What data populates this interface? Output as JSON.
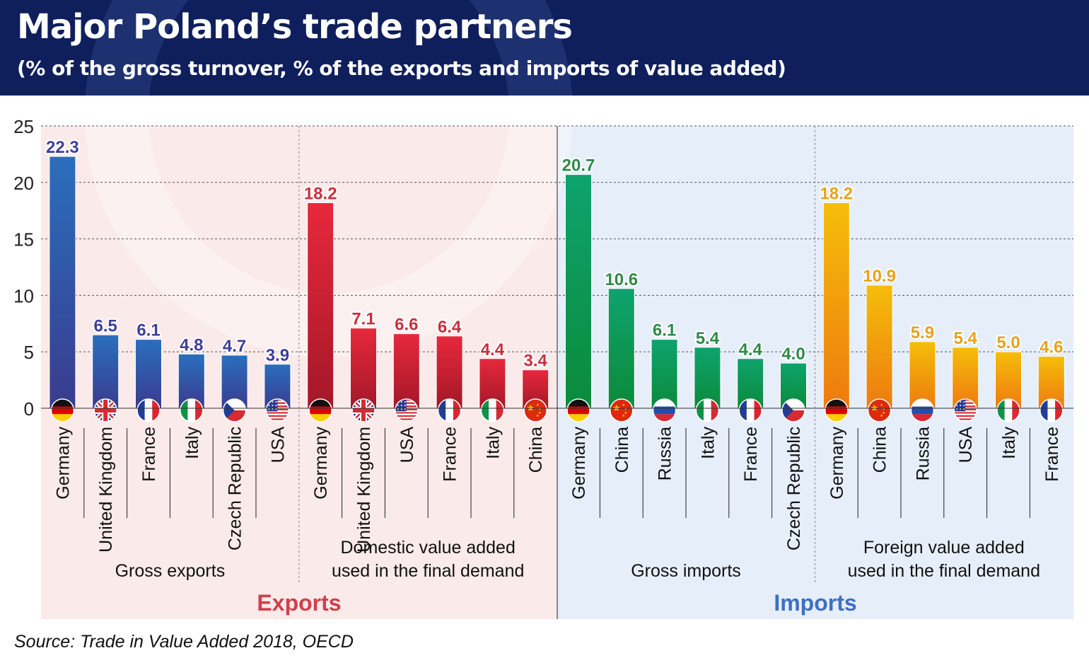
{
  "header": {
    "title": "Major Poland’s trade partners",
    "subtitle": "(% of the gross turnover, % of the exports and imports of value added)"
  },
  "source": "Source: Trade in Value Added 2018, OECD",
  "chart_data": {
    "type": "bar",
    "ylim": [
      0,
      25
    ],
    "yticks": [
      0,
      5,
      10,
      15,
      20,
      25
    ],
    "grid": true,
    "panels": [
      {
        "name": "Exports",
        "bg": "#fbeaea",
        "label_color": "#d13f4a",
        "groups": [
          {
            "label_lines": [
              "Gross exports"
            ],
            "color_top": "#2a6fbd",
            "color_bottom": "#3a3b8f",
            "label_color": "#3e3f98",
            "bars": [
              {
                "country": "Germany",
                "value": 22.3
              },
              {
                "country": "United Kingdom",
                "value": 6.5
              },
              {
                "country": "France",
                "value": 6.1
              },
              {
                "country": "Italy",
                "value": 4.8
              },
              {
                "country": "Czech Republic",
                "value": 4.7
              },
              {
                "country": "USA",
                "value": 3.9
              }
            ]
          },
          {
            "label_lines": [
              "Domestic value added",
              "used in the final demand"
            ],
            "color_top": "#e8283c",
            "color_bottom": "#a31828",
            "label_color": "#c8303d",
            "bars": [
              {
                "country": "Germany",
                "value": 18.2
              },
              {
                "country": "United Kingdom",
                "value": 7.1
              },
              {
                "country": "USA",
                "value": 6.6
              },
              {
                "country": "France",
                "value": 6.4
              },
              {
                "country": "Italy",
                "value": 4.4
              },
              {
                "country": "China",
                "value": 3.4
              }
            ]
          }
        ]
      },
      {
        "name": "Imports",
        "bg": "#e6eefa",
        "label_color": "#3d6fc4",
        "groups": [
          {
            "label_lines": [
              "Gross imports"
            ],
            "color_top": "#0ea36e",
            "color_bottom": "#0c8a3a",
            "label_color": "#2e8a46",
            "bars": [
              {
                "country": "Germany",
                "value": 20.7
              },
              {
                "country": "China",
                "value": 10.6
              },
              {
                "country": "Russia",
                "value": 6.1
              },
              {
                "country": "Italy",
                "value": 5.4
              },
              {
                "country": "France",
                "value": 4.4
              },
              {
                "country": "Czech Republic",
                "value": 4.0
              }
            ]
          },
          {
            "label_lines": [
              "Foreign value added",
              "used in the final demand"
            ],
            "color_top": "#f5be0a",
            "color_bottom": "#ee7a0f",
            "label_color": "#e8a21a",
            "bars": [
              {
                "country": "Germany",
                "value": 18.2
              },
              {
                "country": "China",
                "value": 10.9
              },
              {
                "country": "Russia",
                "value": 5.9
              },
              {
                "country": "USA",
                "value": 5.4
              },
              {
                "country": "Italy",
                "value": 5.0
              },
              {
                "country": "France",
                "value": 4.6
              }
            ]
          }
        ]
      }
    ]
  }
}
